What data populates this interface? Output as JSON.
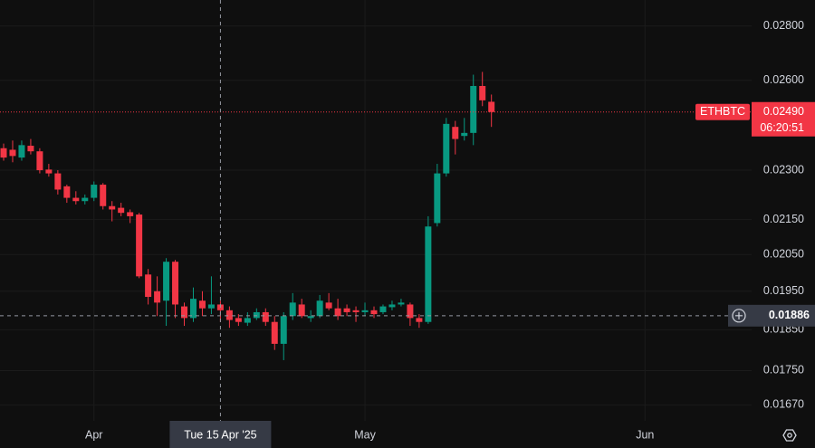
{
  "chart_data": {
    "type": "candlestick",
    "symbol": "ETHBTC",
    "x": [
      "2025-03-22",
      "2025-03-23",
      "2025-03-24",
      "2025-03-25",
      "2025-03-26",
      "2025-03-27",
      "2025-03-28",
      "2025-03-29",
      "2025-03-30",
      "2025-03-31",
      "2025-04-01",
      "2025-04-02",
      "2025-04-03",
      "2025-04-04",
      "2025-04-05",
      "2025-04-06",
      "2025-04-07",
      "2025-04-08",
      "2025-04-09",
      "2025-04-10",
      "2025-04-11",
      "2025-04-12",
      "2025-04-13",
      "2025-04-14",
      "2025-04-15",
      "2025-04-16",
      "2025-04-17",
      "2025-04-18",
      "2025-04-19",
      "2025-04-20",
      "2025-04-21",
      "2025-04-22",
      "2025-04-23",
      "2025-04-24",
      "2025-04-25",
      "2025-04-26",
      "2025-04-27",
      "2025-04-28",
      "2025-04-29",
      "2025-04-30",
      "2025-05-01",
      "2025-05-02",
      "2025-05-03",
      "2025-05-04",
      "2025-05-05",
      "2025-05-06",
      "2025-05-07",
      "2025-05-08",
      "2025-05-09",
      "2025-05-10",
      "2025-05-11",
      "2025-05-12",
      "2025-05-13",
      "2025-05-14",
      "2025-05-15"
    ],
    "open": [
      0.0237,
      0.02365,
      0.0234,
      0.02378,
      0.0236,
      0.02302,
      0.0229,
      0.0225,
      0.02215,
      0.02205,
      0.02215,
      0.02255,
      0.0219,
      0.02185,
      0.02172,
      0.02165,
      0.01995,
      0.0195,
      0.01925,
      0.0203,
      0.0191,
      0.0188,
      0.01925,
      0.01905,
      0.01915,
      0.019,
      0.0188,
      0.01868,
      0.0188,
      0.01895,
      0.0187,
      0.01815,
      0.01885,
      0.01915,
      0.0188,
      0.01885,
      0.0192,
      0.01905,
      0.01905,
      0.019,
      0.01895,
      0.019,
      0.01895,
      0.01908,
      0.01915,
      0.01915,
      0.0188,
      0.0187,
      0.0214,
      0.0229,
      0.0244,
      0.0241,
      0.0242,
      0.0258,
      0.02525
    ],
    "high": [
      0.02385,
      0.02395,
      0.02395,
      0.024,
      0.0237,
      0.0232,
      0.023,
      0.02255,
      0.02235,
      0.02225,
      0.02265,
      0.0226,
      0.02205,
      0.022,
      0.0218,
      0.0217,
      0.0201,
      0.0199,
      0.0204,
      0.02035,
      0.0192,
      0.0196,
      0.0195,
      0.0199,
      0.01925,
      0.0191,
      0.0189,
      0.01895,
      0.01905,
      0.01905,
      0.01885,
      0.01895,
      0.01945,
      0.0193,
      0.019,
      0.0194,
      0.01945,
      0.0193,
      0.01915,
      0.0191,
      0.0192,
      0.0191,
      0.01915,
      0.01925,
      0.0193,
      0.0192,
      0.0189,
      0.0216,
      0.0232,
      0.0247,
      0.0246,
      0.0247,
      0.0262,
      0.0263,
      0.0255
    ],
    "low": [
      0.0233,
      0.02325,
      0.0233,
      0.0235,
      0.0229,
      0.0228,
      0.02225,
      0.022,
      0.02195,
      0.02195,
      0.02205,
      0.0218,
      0.02145,
      0.0216,
      0.0214,
      0.01985,
      0.01915,
      0.01885,
      0.0186,
      0.0188,
      0.0186,
      0.0187,
      0.01885,
      0.0189,
      0.0187,
      0.01855,
      0.0186,
      0.0186,
      0.01875,
      0.0186,
      0.018,
      0.01775,
      0.01875,
      0.0188,
      0.0187,
      0.0188,
      0.019,
      0.01875,
      0.01885,
      0.0187,
      0.01885,
      0.0188,
      0.0189,
      0.019,
      0.0191,
      0.0186,
      0.01855,
      0.01865,
      0.0213,
      0.0228,
      0.0235,
      0.02395,
      0.0238,
      0.0251,
      0.0244
    ],
    "close": [
      0.0234,
      0.02345,
      0.0238,
      0.0236,
      0.023,
      0.0229,
      0.0224,
      0.02215,
      0.02205,
      0.02215,
      0.02255,
      0.0219,
      0.0218,
      0.0217,
      0.0216,
      0.0199,
      0.01935,
      0.0192,
      0.0203,
      0.01915,
      0.0188,
      0.0193,
      0.01905,
      0.01915,
      0.019,
      0.01875,
      0.0187,
      0.0188,
      0.01895,
      0.0187,
      0.01815,
      0.01885,
      0.0192,
      0.01885,
      0.01885,
      0.01925,
      0.01905,
      0.01885,
      0.01895,
      0.01895,
      0.019,
      0.0189,
      0.0191,
      0.01915,
      0.0192,
      0.0188,
      0.0187,
      0.0213,
      0.0229,
      0.0245,
      0.024,
      0.0242,
      0.0258,
      0.0253,
      0.0249
    ],
    "up_color": "#089981",
    "down_color": "#f23645",
    "log_scale": true,
    "grid": true,
    "ylim": [
      0.01634,
      0.02901
    ],
    "yticks": [
      {
        "value": 0.028,
        "label": "0.02800"
      },
      {
        "value": 0.026,
        "label": "0.02600"
      },
      {
        "value": 0.023,
        "label": "0.02300"
      },
      {
        "value": 0.0215,
        "label": "0.02150"
      },
      {
        "value": 0.0205,
        "label": "0.02050"
      },
      {
        "value": 0.0195,
        "label": "0.01950"
      },
      {
        "value": 0.0185,
        "label": "0.01850"
      },
      {
        "value": 0.0175,
        "label": "0.01750"
      },
      {
        "value": 0.0167,
        "label": "0.01670"
      }
    ],
    "xlim": [
      "2025-03-22",
      "2025-06-12"
    ],
    "xticks": [
      {
        "value": "2025-04-01",
        "label": "Apr"
      },
      {
        "value": "2025-05-01",
        "label": "May"
      },
      {
        "value": "2025-06-01",
        "label": "Jun"
      }
    ],
    "last_price": {
      "value": 0.0249,
      "label": "0.02490"
    },
    "countdown": "06:20:51",
    "crosshair": {
      "x": {
        "value": "2025-04-15",
        "label": "Tue 15 Apr '25"
      },
      "y": {
        "value": 0.01886,
        "label": "0.01886"
      }
    }
  }
}
